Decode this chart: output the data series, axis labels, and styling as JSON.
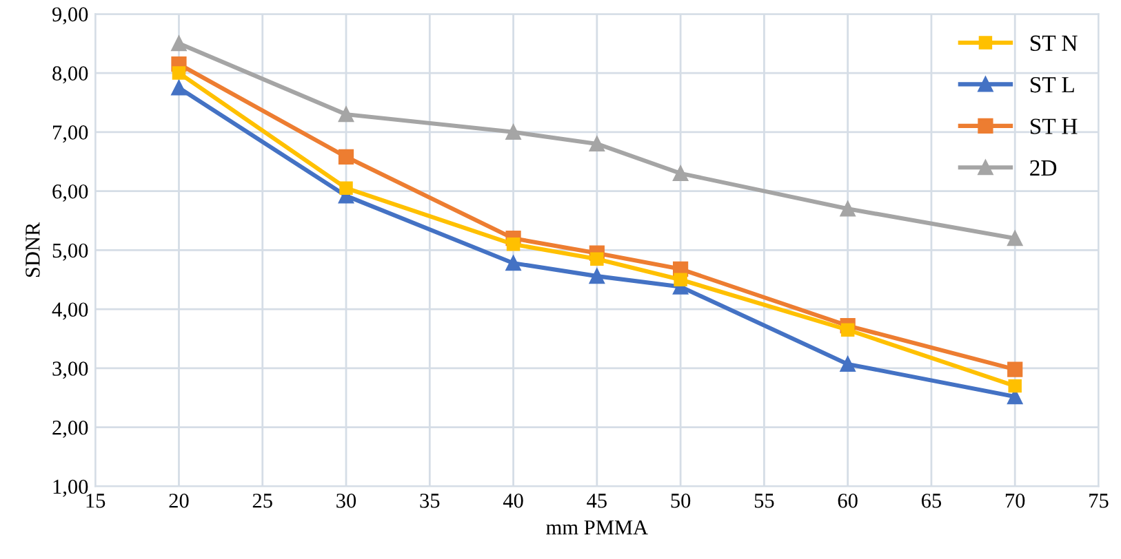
{
  "chart_data": {
    "type": "line",
    "xlabel": "mm PMMA",
    "ylabel": "SDNR",
    "x": [
      20,
      30,
      40,
      45,
      50,
      60,
      70
    ],
    "series": [
      {
        "name": "ST N",
        "color": "#ffc000",
        "marker": "square",
        "values": [
          8.0,
          6.05,
          5.1,
          4.85,
          4.5,
          3.65,
          2.7
        ]
      },
      {
        "name": "ST L",
        "color": "#4472c4",
        "marker": "triangle",
        "values": [
          7.75,
          5.92,
          4.78,
          4.56,
          4.38,
          3.07,
          2.52
        ]
      },
      {
        "name": "ST H",
        "color": "#ed7d31",
        "marker": "square",
        "values": [
          8.15,
          6.58,
          5.2,
          4.95,
          4.68,
          3.72,
          2.98
        ]
      },
      {
        "name": "2D",
        "color": "#a5a5a5",
        "marker": "triangle",
        "values": [
          8.5,
          7.3,
          7.0,
          6.8,
          6.3,
          5.7,
          5.2
        ]
      }
    ],
    "xlim": [
      15,
      75
    ],
    "xticks": [
      15,
      20,
      25,
      30,
      35,
      40,
      45,
      50,
      55,
      60,
      65,
      70,
      75
    ],
    "ylim": [
      1,
      9
    ],
    "yticks": [
      {
        "value": 1,
        "label": "1,00"
      },
      {
        "value": 2,
        "label": "2,00"
      },
      {
        "value": 3,
        "label": "3,00"
      },
      {
        "value": 4,
        "label": "4,00"
      },
      {
        "value": 5,
        "label": "5,00"
      },
      {
        "value": 6,
        "label": "6,00"
      },
      {
        "value": 7,
        "label": "7,00"
      },
      {
        "value": 8,
        "label": "8,00"
      },
      {
        "value": 9,
        "label": "9,00"
      }
    ],
    "grid": true,
    "legend": "top right",
    "line_style": "solid"
  }
}
